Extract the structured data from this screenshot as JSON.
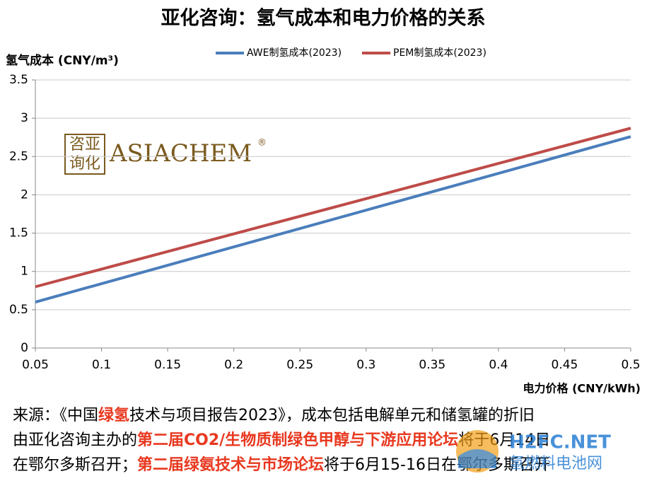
{
  "chart_data": {
    "type": "line",
    "title": "亚化咨询：氢气成本和电力价格的关系",
    "y_label": "氢气成本 (CNY/m³)",
    "x_label": "电力价格 (CNY/kWh)",
    "x": [
      0.05,
      0.5
    ],
    "series": [
      {
        "name": "AWE制氢成本(2023)",
        "color": "#4a7ebb",
        "values": [
          0.6,
          2.76
        ]
      },
      {
        "name": "PEM制氢成本(2023)",
        "color": "#be4b48",
        "values": [
          0.8,
          2.87
        ]
      }
    ],
    "xlim": [
      0.05,
      0.5
    ],
    "xticks": [
      0.05,
      0.1,
      0.15,
      0.2,
      0.25,
      0.3,
      0.35,
      0.4,
      0.45,
      0.5
    ],
    "ylim": [
      0,
      3.5
    ],
    "yticks": [
      0,
      0.5,
      1,
      1.5,
      2,
      2.5,
      3,
      3.5
    ],
    "grid": true,
    "legend": "top"
  },
  "logo": {
    "mark_top": "咨亚",
    "mark_bottom": "询化",
    "text": "ASIACHEM",
    "symbol": "®"
  },
  "footer": [
    [
      {
        "text": "来源：《中国",
        "color": "#000000"
      },
      {
        "text": "绿氢",
        "color": "#e8381f"
      },
      {
        "text": "技术与项目报告2023》，成本包括电解单元和储氢罐的折旧",
        "color": "#000000"
      }
    ],
    [
      {
        "text": "由亚化咨询主办的",
        "color": "#000000"
      },
      {
        "text": "第二届CO2/生物质制绿色甲醇与下游应用论坛",
        "color": "#e8381f"
      },
      {
        "text": "将于6月14日",
        "color": "#000000"
      }
    ],
    [
      {
        "text": "在鄂尔多斯召开；",
        "color": "#000000"
      },
      {
        "text": "第二届绿氨技术与市场论坛",
        "color": "#e8381f"
      },
      {
        "text": "将于6月15-16日在鄂尔多斯召开",
        "color": "#000000"
      }
    ]
  ],
  "watermark": {
    "site": "H2FC.NET",
    "name": "氢燃料电池网"
  }
}
